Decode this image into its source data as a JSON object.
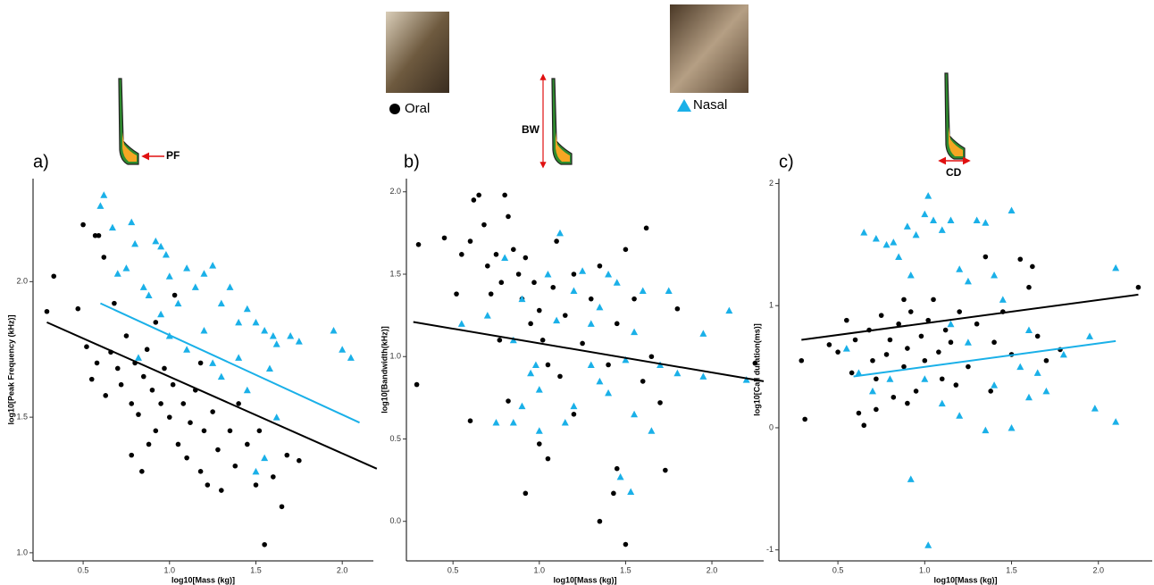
{
  "chart_data": [
    {
      "type": "scatter",
      "panel_label": "a)",
      "annotation": "PF",
      "x_label": "log10[Mass (kg)]",
      "y_label": "log10[Peak Frequency (kHz)]",
      "xlim": [
        0.21,
        2.18
      ],
      "ylim": [
        0.97,
        2.38
      ],
      "xticks": [
        0.5,
        {
          "value": 1,
          "label": "1.0"
        },
        1.5,
        {
          "value": 2,
          "label": "2.0"
        }
      ],
      "yticks": [
        {
          "value": 1,
          "label": "1.0"
        },
        1.5,
        {
          "value": 2,
          "label": "2.0"
        }
      ],
      "series": [
        {
          "name": "Oral",
          "color": "#000000",
          "marker": "circle",
          "x": [
            0.29,
            0.33,
            0.47,
            0.5,
            0.57,
            0.59,
            0.62,
            0.52,
            0.55,
            0.58,
            0.63,
            0.66,
            0.7,
            0.72,
            0.75,
            0.78,
            0.8,
            0.82,
            0.85,
            0.87,
            0.9,
            0.92,
            0.95,
            0.97,
            1.0,
            1.02,
            1.05,
            1.08,
            1.1,
            1.12,
            1.15,
            1.18,
            1.2,
            1.22,
            1.25,
            1.28,
            1.3,
            1.35,
            1.38,
            1.4,
            1.45,
            1.5,
            1.52,
            1.55,
            1.6,
            1.65,
            1.68,
            1.75,
            0.78,
            0.84,
            0.92,
            1.03,
            0.68,
            1.18,
            0.88
          ],
          "values": [
            1.89,
            2.02,
            1.9,
            2.21,
            2.17,
            2.17,
            2.09,
            1.76,
            1.64,
            1.7,
            1.58,
            1.74,
            1.68,
            1.62,
            1.8,
            1.55,
            1.7,
            1.51,
            1.65,
            1.75,
            1.6,
            1.45,
            1.55,
            1.68,
            1.5,
            1.62,
            1.4,
            1.55,
            1.35,
            1.48,
            1.6,
            1.3,
            1.45,
            1.25,
            1.52,
            1.38,
            1.23,
            1.45,
            1.32,
            1.55,
            1.4,
            1.25,
            1.45,
            1.03,
            1.28,
            1.17,
            1.36,
            1.34,
            1.36,
            1.3,
            1.85,
            1.95,
            1.92,
            1.7,
            1.4
          ]
        },
        {
          "name": "Nasal",
          "color": "#1ab0e8",
          "marker": "triangle",
          "x": [
            0.6,
            0.62,
            0.67,
            0.78,
            0.8,
            0.7,
            0.75,
            0.85,
            0.92,
            0.95,
            0.98,
            0.88,
            1.0,
            1.05,
            1.1,
            1.15,
            1.2,
            1.25,
            1.3,
            1.35,
            1.4,
            1.45,
            1.5,
            1.55,
            1.6,
            1.62,
            1.7,
            1.75,
            1.95,
            2.0,
            2.05,
            1.0,
            1.1,
            1.2,
            0.82,
            1.3,
            1.45,
            1.55,
            1.5,
            1.62,
            1.25,
            0.95,
            1.4,
            1.58
          ],
          "values": [
            2.28,
            2.32,
            2.2,
            2.22,
            2.14,
            2.03,
            2.05,
            1.98,
            2.15,
            2.13,
            2.1,
            1.95,
            2.02,
            1.92,
            2.05,
            1.98,
            2.03,
            2.06,
            1.92,
            1.98,
            1.85,
            1.9,
            1.85,
            1.82,
            1.8,
            1.77,
            1.8,
            1.78,
            1.82,
            1.75,
            1.72,
            1.8,
            1.75,
            1.82,
            1.72,
            1.65,
            1.6,
            1.35,
            1.3,
            1.5,
            1.7,
            1.88,
            1.72,
            1.68
          ]
        }
      ],
      "fit_lines": [
        {
          "color": "#000000",
          "x": [
            0.29,
            2.2
          ],
          "values": [
            1.85,
            1.31
          ]
        },
        {
          "color": "#1ab0e8",
          "x": [
            0.6,
            2.1
          ],
          "values": [
            1.92,
            1.48
          ]
        }
      ]
    },
    {
      "type": "scatter",
      "panel_label": "b)",
      "annotation": "BW",
      "x_label": "log10[Mass (kg)]",
      "y_label": "log10[Bandwidth(kHz)]",
      "xlim": [
        0.23,
        2.3
      ],
      "ylim": [
        -0.24,
        2.08
      ],
      "xticks": [
        0.5,
        {
          "value": 1,
          "label": "1.0"
        },
        1.5,
        {
          "value": 2,
          "label": "2.0"
        }
      ],
      "yticks": [
        {
          "value": 0,
          "label": "0.0"
        },
        0.5,
        {
          "value": 1,
          "label": "1.0"
        },
        1.5,
        {
          "value": 2,
          "label": "2.0"
        }
      ],
      "series": [
        {
          "color": "#000000",
          "marker": "circle",
          "x": [
            0.29,
            0.3,
            0.45,
            0.52,
            0.55,
            0.6,
            0.62,
            0.65,
            0.68,
            0.7,
            0.72,
            0.75,
            0.78,
            0.8,
            0.82,
            0.85,
            0.88,
            0.9,
            0.92,
            0.95,
            0.97,
            1.0,
            1.02,
            1.05,
            1.08,
            1.1,
            1.15,
            1.2,
            1.25,
            1.3,
            1.35,
            1.4,
            1.45,
            1.5,
            1.55,
            1.6,
            1.65,
            1.7,
            1.62,
            1.45,
            1.43,
            1.35,
            1.5,
            1.73,
            0.6,
            0.92,
            1.05,
            1.0,
            0.82,
            1.8,
            2.25,
            1.2,
            1.12,
            0.77
          ],
          "values": [
            0.83,
            1.68,
            1.72,
            1.38,
            1.62,
            1.7,
            1.95,
            1.98,
            1.8,
            1.55,
            1.38,
            1.62,
            1.45,
            1.98,
            1.85,
            1.65,
            1.5,
            1.35,
            1.6,
            1.2,
            1.45,
            1.28,
            1.1,
            0.95,
            1.42,
            1.7,
            1.25,
            1.5,
            1.08,
            1.35,
            1.55,
            0.95,
            1.2,
            1.65,
            1.35,
            0.85,
            1.0,
            0.72,
            1.78,
            0.32,
            0.17,
            0.0,
            -0.14,
            0.31,
            0.61,
            0.17,
            0.38,
            0.47,
            0.73,
            1.29,
            0.96,
            0.65,
            0.88,
            1.1
          ]
        },
        {
          "color": "#1ab0e8",
          "marker": "triangle",
          "x": [
            0.55,
            0.7,
            0.8,
            0.85,
            0.9,
            0.95,
            1.0,
            1.05,
            1.1,
            1.15,
            1.2,
            1.25,
            1.3,
            1.35,
            1.4,
            1.45,
            1.5,
            1.55,
            1.6,
            1.65,
            1.7,
            1.75,
            1.8,
            1.95,
            2.1,
            1.95,
            2.2,
            1.53,
            1.47,
            1.0,
            0.85,
            1.12,
            1.3,
            1.4,
            0.9,
            1.2,
            0.75,
            1.55,
            0.98,
            1.35
          ],
          "values": [
            1.2,
            1.25,
            1.6,
            1.1,
            1.35,
            0.9,
            0.8,
            1.5,
            1.22,
            0.6,
            1.4,
            1.52,
            0.95,
            1.3,
            0.78,
            1.45,
            0.98,
            1.15,
            1.4,
            0.55,
            0.95,
            1.4,
            0.9,
            1.14,
            1.28,
            0.88,
            0.86,
            0.18,
            0.27,
            0.55,
            0.6,
            1.75,
            1.2,
            1.5,
            0.7,
            0.7,
            0.6,
            0.65,
            0.95,
            0.85
          ]
        }
      ],
      "fit_lines": [
        {
          "color": "#000000",
          "x": [
            0.27,
            2.3
          ],
          "values": [
            1.21,
            0.85
          ]
        }
      ]
    },
    {
      "type": "scatter",
      "panel_label": "c)",
      "annotation": "CD",
      "x_label": "log10[Mass (kg)]",
      "y_label": "log10[Call duration(ms)]",
      "xlim": [
        0.16,
        2.31
      ],
      "ylim": [
        -1.09,
        2.04
      ],
      "xticks": [
        0.5,
        {
          "value": 1,
          "label": "1.0"
        },
        1.5,
        {
          "value": 2,
          "label": "2.0"
        }
      ],
      "yticks": [
        -1,
        0,
        1,
        2
      ],
      "series": [
        {
          "color": "#000000",
          "marker": "circle",
          "x": [
            0.29,
            0.31,
            0.45,
            0.5,
            0.55,
            0.58,
            0.6,
            0.62,
            0.65,
            0.68,
            0.7,
            0.72,
            0.75,
            0.78,
            0.8,
            0.82,
            0.85,
            0.88,
            0.9,
            0.92,
            0.95,
            0.98,
            1.0,
            1.02,
            1.05,
            1.08,
            1.1,
            1.12,
            1.15,
            1.2,
            1.25,
            1.3,
            1.35,
            1.4,
            1.45,
            1.5,
            1.55,
            1.6,
            1.62,
            1.65,
            1.7,
            1.78,
            2.23,
            0.72,
            0.9,
            1.18,
            1.38,
            0.88
          ],
          "values": [
            0.55,
            0.07,
            0.68,
            0.62,
            0.88,
            0.45,
            0.72,
            0.12,
            0.02,
            0.8,
            0.55,
            0.4,
            0.92,
            0.6,
            0.72,
            0.25,
            0.85,
            0.5,
            0.65,
            0.95,
            0.3,
            0.75,
            0.55,
            0.88,
            1.05,
            0.62,
            0.4,
            0.8,
            0.7,
            0.95,
            0.5,
            0.85,
            1.4,
            0.7,
            0.95,
            0.6,
            1.38,
            1.15,
            1.32,
            0.75,
            0.55,
            0.64,
            1.15,
            0.15,
            0.2,
            0.35,
            0.3,
            1.05
          ]
        },
        {
          "color": "#1ab0e8",
          "marker": "triangle",
          "x": [
            0.55,
            0.62,
            0.65,
            0.72,
            0.78,
            0.82,
            0.85,
            0.9,
            0.92,
            0.95,
            1.0,
            1.02,
            1.05,
            1.1,
            1.15,
            1.2,
            1.25,
            1.3,
            1.35,
            1.4,
            1.45,
            1.5,
            1.55,
            1.6,
            1.65,
            1.7,
            1.8,
            1.95,
            2.1,
            1.98,
            2.1,
            1.02,
            0.92,
            1.1,
            1.2,
            1.35,
            1.5,
            0.8,
            1.0,
            1.25,
            1.4,
            0.7,
            1.15,
            1.6
          ],
          "values": [
            0.65,
            0.45,
            1.6,
            1.55,
            1.5,
            1.52,
            1.4,
            1.65,
            1.25,
            1.58,
            1.75,
            1.9,
            1.7,
            1.62,
            1.7,
            1.3,
            1.2,
            1.7,
            1.68,
            1.25,
            1.05,
            1.78,
            0.5,
            0.25,
            0.45,
            0.3,
            0.6,
            0.75,
            1.31,
            0.16,
            0.05,
            -0.96,
            -0.42,
            0.2,
            0.1,
            -0.02,
            0.0,
            0.4,
            0.4,
            0.7,
            0.35,
            0.3,
            0.85,
            0.8
          ]
        }
      ],
      "fit_lines": [
        {
          "color": "#000000",
          "x": [
            0.29,
            2.23
          ],
          "values": [
            0.72,
            1.09
          ]
        },
        {
          "color": "#1ab0e8",
          "x": [
            0.59,
            2.1
          ],
          "values": [
            0.42,
            0.71
          ]
        }
      ]
    }
  ]
}
